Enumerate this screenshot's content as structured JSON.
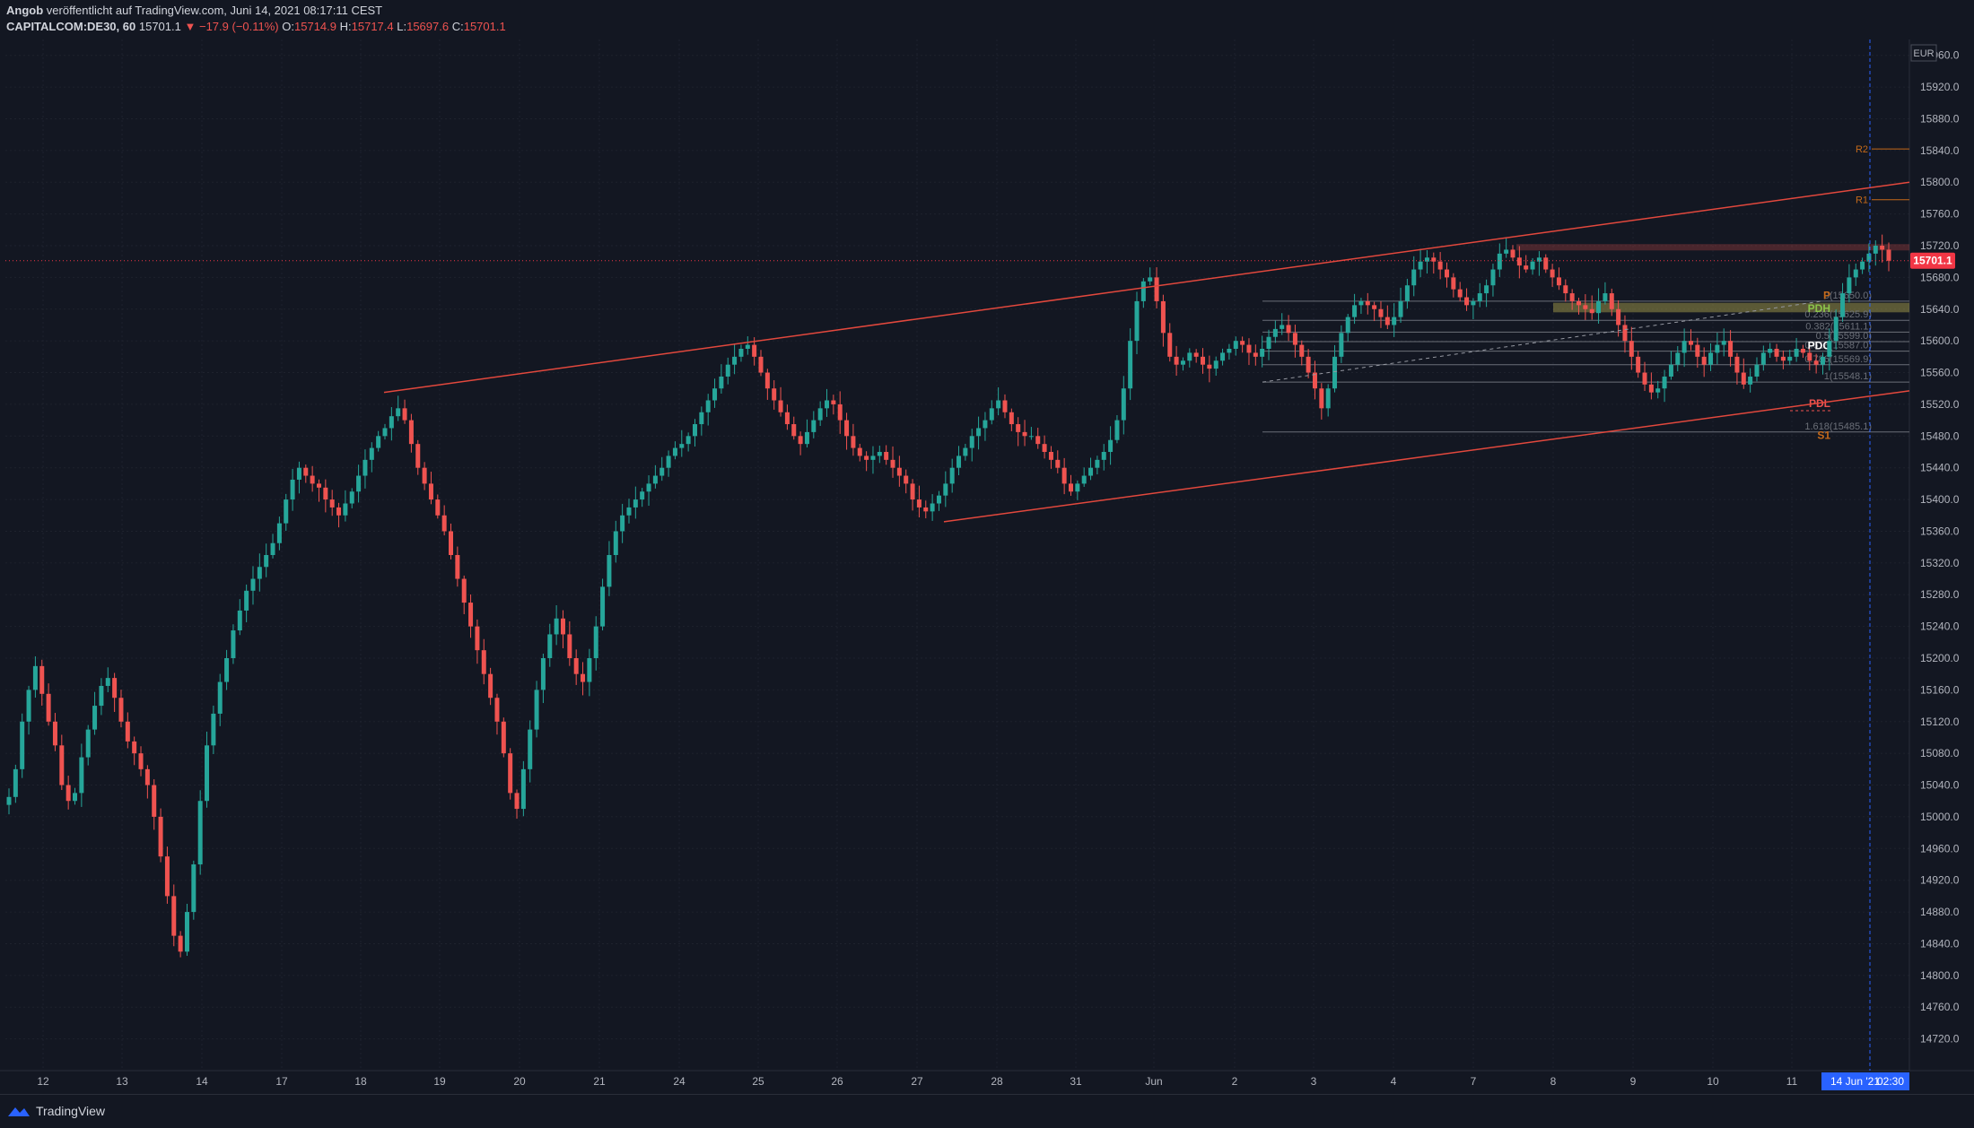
{
  "header": {
    "author": "Angob",
    "published": "veröffentlicht auf TradingView.com, Juni 14, 2021 08:17:11 CEST",
    "symbol": "CAPITALCOM:DE30, 60",
    "last": "15701.1",
    "change": "−17.9 (−0.11%)",
    "o_label": "O:",
    "o_value": "15714.9",
    "h_label": "H:",
    "h_value": "15717.4",
    "l_label": "L:",
    "l_value": "15697.6",
    "c_label": "C:",
    "c_value": "15701.1"
  },
  "footer": {
    "brand": "TradingView"
  },
  "colors": {
    "background": "#131722",
    "up": "#26a69a",
    "down": "#ef5350",
    "grid": "#1e222d",
    "channel": "#e2483d",
    "pivot": "#c4691a",
    "price_tag": "#f23645",
    "time_cursor": "#2962ff"
  },
  "chart_data": {
    "type": "candlestick",
    "currency": "EUR",
    "current_price": "15701.1",
    "cursor_label": "14 Jun '21",
    "cursor_time": "02:30",
    "ylim": [
      14680,
      15980
    ],
    "y_ticks": [
      "15960.0",
      "15920.0",
      "15880.0",
      "15840.0",
      "15800.0",
      "15760.0",
      "15720.0",
      "15680.0",
      "15640.0",
      "15600.0",
      "15560.0",
      "15520.0",
      "15480.0",
      "15440.0",
      "15400.0",
      "15360.0",
      "15320.0",
      "15280.0",
      "15240.0",
      "15200.0",
      "15160.0",
      "15120.0",
      "15080.0",
      "15040.0",
      "15000.0",
      "14960.0",
      "14920.0",
      "14880.0",
      "14840.0",
      "14800.0",
      "14760.0",
      "14720.0"
    ],
    "x_ticks": [
      "12",
      "13",
      "14",
      "17",
      "18",
      "19",
      "20",
      "21",
      "24",
      "25",
      "26",
      "27",
      "28",
      "31",
      "Jun",
      "2",
      "3",
      "4",
      "7",
      "8",
      "9",
      "10",
      "11"
    ],
    "pivot_levels": [
      {
        "label": "R2",
        "value": 15842
      },
      {
        "label": "R1",
        "value": 15778
      }
    ],
    "fib_levels": [
      {
        "label": "0(15650.0)",
        "value": 15650.0
      },
      {
        "label": "0.236(15625.9)",
        "value": 15625.9
      },
      {
        "label": "0.382(15611.1)",
        "value": 15611.1
      },
      {
        "label": "0.5(15599.0)",
        "value": 15599.0
      },
      {
        "label": "0.618(15587.0)",
        "value": 15587.0
      },
      {
        "label": "0.786(15569.9)",
        "value": 15569.9
      },
      {
        "label": "1(15548.1)",
        "value": 15548.1
      },
      {
        "label": "1.618(15485.1)",
        "value": 15485.1
      }
    ],
    "marker_labels": [
      {
        "label": "PDH",
        "value": 15641
      },
      {
        "label": "PDC",
        "value": 15594
      },
      {
        "label": "PDL",
        "value": 15521
      },
      {
        "label": "S1",
        "value": 15481
      },
      {
        "label": "P",
        "value": 15657
      }
    ],
    "channel_upper": [
      {
        "x": "18",
        "y": 15535
      },
      {
        "x": "11",
        "y": 15800
      }
    ],
    "channel_lower": [
      {
        "x": "27",
        "y": 15372
      },
      {
        "x": "11",
        "y": 15537
      }
    ],
    "resistance_zone": [
      15714,
      15722
    ],
    "pdh_zone": [
      15636,
      15648
    ],
    "close_series": [
      15025,
      15060,
      15120,
      15160,
      15190,
      15155,
      15120,
      15090,
      15040,
      15020,
      15030,
      15075,
      15110,
      15140,
      15165,
      15175,
      15150,
      15120,
      15095,
      15080,
      15060,
      15040,
      15000,
      14950,
      14900,
      14850,
      14830,
      14880,
      14940,
      15020,
      15090,
      15130,
      15170,
      15200,
      15235,
      15260,
      15285,
      15300,
      15315,
      15330,
      15345,
      15370,
      15400,
      15425,
      15440,
      15430,
      15420,
      15415,
      15400,
      15390,
      15380,
      15395,
      15410,
      15430,
      15450,
      15465,
      15480,
      15490,
      15505,
      15515,
      15500,
      15470,
      15440,
      15420,
      15400,
      15380,
      15360,
      15330,
      15300,
      15270,
      15240,
      15210,
      15180,
      15150,
      15120,
      15080,
      15030,
      15010,
      15060,
      15110,
      15160,
      15200,
      15230,
      15250,
      15230,
      15200,
      15180,
      15170,
      15200,
      15240,
      15290,
      15330,
      15360,
      15380,
      15390,
      15400,
      15410,
      15420,
      15430,
      15440,
      15455,
      15465,
      15470,
      15480,
      15495,
      15510,
      15525,
      15540,
      15555,
      15570,
      15580,
      15590,
      15595,
      15580,
      15560,
      15540,
      15525,
      15510,
      15495,
      15480,
      15470,
      15485,
      15500,
      15515,
      15525,
      15520,
      15500,
      15480,
      15465,
      15455,
      15450,
      15455,
      15460,
      15450,
      15440,
      15430,
      15420,
      15400,
      15390,
      15385,
      15395,
      15405,
      15420,
      15440,
      15455,
      15465,
      15480,
      15490,
      15500,
      15515,
      15525,
      15510,
      15495,
      15485,
      15480,
      15480,
      15470,
      15460,
      15450,
      15440,
      15420,
      15410,
      15420,
      15430,
      15440,
      15450,
      15460,
      15475,
      15500,
      15540,
      15600,
      15650,
      15675,
      15680,
      15650,
      15610,
      15580,
      15570,
      15575,
      15585,
      15580,
      15570,
      15565,
      15575,
      15585,
      15590,
      15600,
      15595,
      15585,
      15580,
      15590,
      15605,
      15615,
      15620,
      15610,
      15595,
      15580,
      15560,
      15540,
      15515,
      15540,
      15580,
      15610,
      15630,
      15645,
      15650,
      15645,
      15640,
      15630,
      15620,
      15630,
      15650,
      15670,
      15690,
      15700,
      15705,
      15700,
      15690,
      15680,
      15665,
      15655,
      15645,
      15650,
      15660,
      15670,
      15690,
      15710,
      15715,
      15705,
      15695,
      15690,
      15700,
      15705,
      15690,
      15680,
      15670,
      15660,
      15650,
      15645,
      15640,
      15635,
      15650,
      15660,
      15640,
      15620,
      15600,
      15580,
      15560,
      15545,
      15535,
      15540,
      15555,
      15570,
      15585,
      15600,
      15595,
      15580,
      15570,
      15585,
      15595,
      15600,
      15580,
      15560,
      15545,
      15555,
      15570,
      15585,
      15590,
      15580,
      15575,
      15580,
      15590,
      15585,
      15575,
      15570,
      15580,
      15600,
      15630,
      15660,
      15680,
      15690,
      15700,
      15710,
      15720,
      15715,
      15701
    ]
  }
}
